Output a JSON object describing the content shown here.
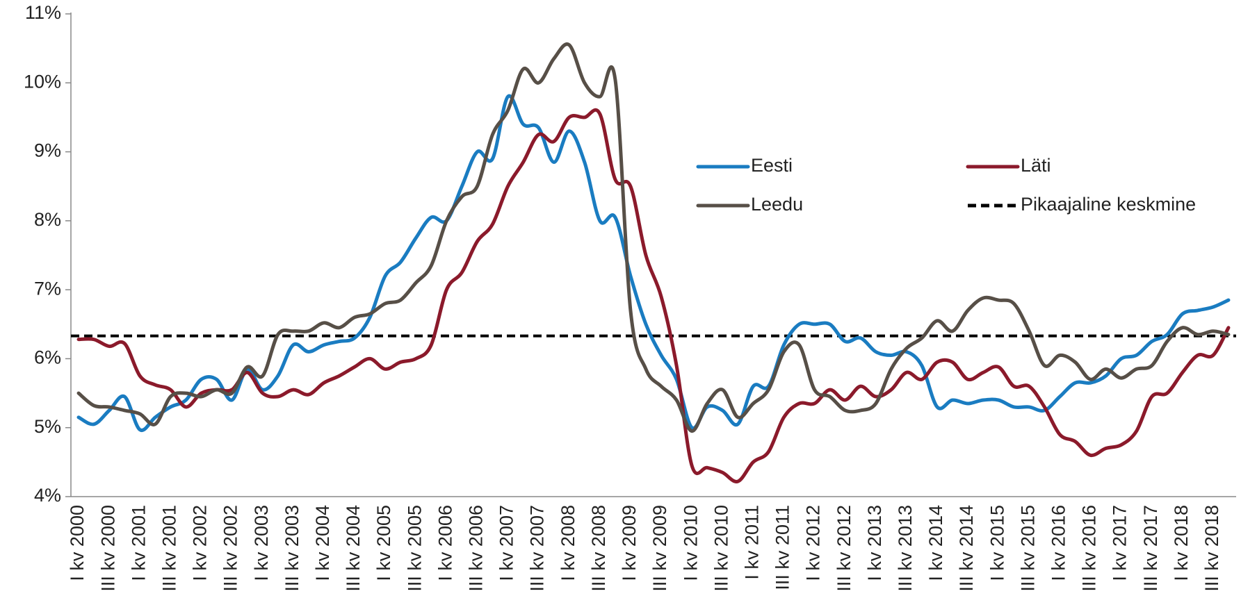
{
  "chart_data": {
    "type": "line",
    "categories": [
      "I kv 2000",
      null,
      "III kv 2000",
      null,
      "I kv 2001",
      null,
      "III kv 2001",
      null,
      "I kv 2002",
      null,
      "III kv 2002",
      null,
      "I kv 2003",
      null,
      "III kv 2003",
      null,
      "I kv 2004",
      null,
      "III kv 2004",
      null,
      "I kv 2005",
      null,
      "III kv 2005",
      null,
      "I kv 2006",
      null,
      "III kv 2006",
      null,
      "I kv 2007",
      null,
      "III kv 2007",
      null,
      "I kv 2008",
      null,
      "III kv 2008",
      null,
      "I kv 2009",
      null,
      "III kv 2009",
      null,
      "I kv 2010",
      null,
      "III kv 2010",
      null,
      "I kv 2011",
      null,
      "III kv 2011",
      null,
      "I kv 2012",
      null,
      "III kv 2012",
      null,
      "I kv 2013",
      null,
      "III kv 2013",
      null,
      "I kv 2014",
      null,
      "III kv 2014",
      null,
      "I kv 2015",
      null,
      "III kv 2015",
      null,
      "I kv 2016",
      null,
      "III kv 2016",
      null,
      "I kv 2017",
      null,
      "III kv 2017",
      null,
      "I kv 2018",
      null,
      "III kv 2018",
      null
    ],
    "series": [
      {
        "name": "Eesti",
        "color": "#1a7cc1",
        "values": [
          5.15,
          5.05,
          5.25,
          5.45,
          4.97,
          5.15,
          5.3,
          5.4,
          5.7,
          5.7,
          5.4,
          5.85,
          5.55,
          5.75,
          6.2,
          6.1,
          6.2,
          6.25,
          6.3,
          6.6,
          7.2,
          7.4,
          7.75,
          8.05,
          8.0,
          8.5,
          9.0,
          8.9,
          9.8,
          9.4,
          9.35,
          8.85,
          9.3,
          8.85,
          8.0,
          8.05,
          7.2,
          6.5,
          6.05,
          5.7,
          5.0,
          5.3,
          5.25,
          5.05,
          5.6,
          5.6,
          6.2,
          6.5,
          6.5,
          6.5,
          6.25,
          6.3,
          6.1,
          6.05,
          6.1,
          5.9,
          5.3,
          5.4,
          5.35,
          5.4,
          5.4,
          5.3,
          5.3,
          5.25,
          5.45,
          5.65,
          5.65,
          5.75,
          6.0,
          6.05,
          6.25,
          6.35,
          6.65,
          6.7,
          6.75,
          6.85
        ]
      },
      {
        "name": "Läti",
        "color": "#8b1a2b",
        "values": [
          6.28,
          6.28,
          6.18,
          6.22,
          5.75,
          5.62,
          5.55,
          5.3,
          5.5,
          5.55,
          5.55,
          5.8,
          5.5,
          5.45,
          5.55,
          5.48,
          5.65,
          5.75,
          5.88,
          6.0,
          5.85,
          5.95,
          6.0,
          6.2,
          7.0,
          7.25,
          7.7,
          7.95,
          8.5,
          8.85,
          9.25,
          9.15,
          9.5,
          9.5,
          9.55,
          8.6,
          8.5,
          7.5,
          6.9,
          5.9,
          4.45,
          4.42,
          4.35,
          4.22,
          4.5,
          4.65,
          5.15,
          5.35,
          5.35,
          5.55,
          5.4,
          5.6,
          5.45,
          5.55,
          5.8,
          5.7,
          5.95,
          5.95,
          5.7,
          5.8,
          5.88,
          5.6,
          5.6,
          5.3,
          4.9,
          4.8,
          4.6,
          4.7,
          4.75,
          4.95,
          5.45,
          5.5,
          5.8,
          6.05,
          6.05,
          6.45
        ]
      },
      {
        "name": "Leedu",
        "color": "#574f47",
        "values": [
          5.5,
          5.32,
          5.3,
          5.25,
          5.2,
          5.05,
          5.45,
          5.5,
          5.45,
          5.55,
          5.5,
          5.88,
          5.75,
          6.35,
          6.4,
          6.4,
          6.52,
          6.45,
          6.6,
          6.65,
          6.8,
          6.85,
          7.1,
          7.35,
          8.0,
          8.35,
          8.5,
          9.25,
          9.6,
          10.2,
          10.0,
          10.35,
          10.55,
          10.0,
          9.8,
          10.05,
          6.7,
          5.85,
          5.6,
          5.4,
          4.95,
          5.35,
          5.55,
          5.15,
          5.35,
          5.55,
          6.1,
          6.2,
          5.55,
          5.45,
          5.25,
          5.25,
          5.35,
          5.85,
          6.15,
          6.3,
          6.55,
          6.4,
          6.7,
          6.88,
          6.85,
          6.8,
          6.4,
          5.9,
          6.05,
          5.95,
          5.7,
          5.85,
          5.72,
          5.85,
          5.9,
          6.25,
          6.45,
          6.35,
          6.4,
          6.35
        ]
      }
    ],
    "reference_line": {
      "name": "Pikaajaline keskmine",
      "value": 6.33,
      "color": "#000000",
      "dashed": true
    },
    "ylim": [
      4,
      11
    ],
    "yticks": [
      {
        "value": 4,
        "label": "4%"
      },
      {
        "value": 5,
        "label": "5%"
      },
      {
        "value": 6,
        "label": "6%"
      },
      {
        "value": 7,
        "label": "7%"
      },
      {
        "value": 8,
        "label": "8%"
      },
      {
        "value": 9,
        "label": "9%"
      },
      {
        "value": 10,
        "label": "10%"
      },
      {
        "value": 11,
        "label": "11%"
      }
    ],
    "grid": false
  }
}
